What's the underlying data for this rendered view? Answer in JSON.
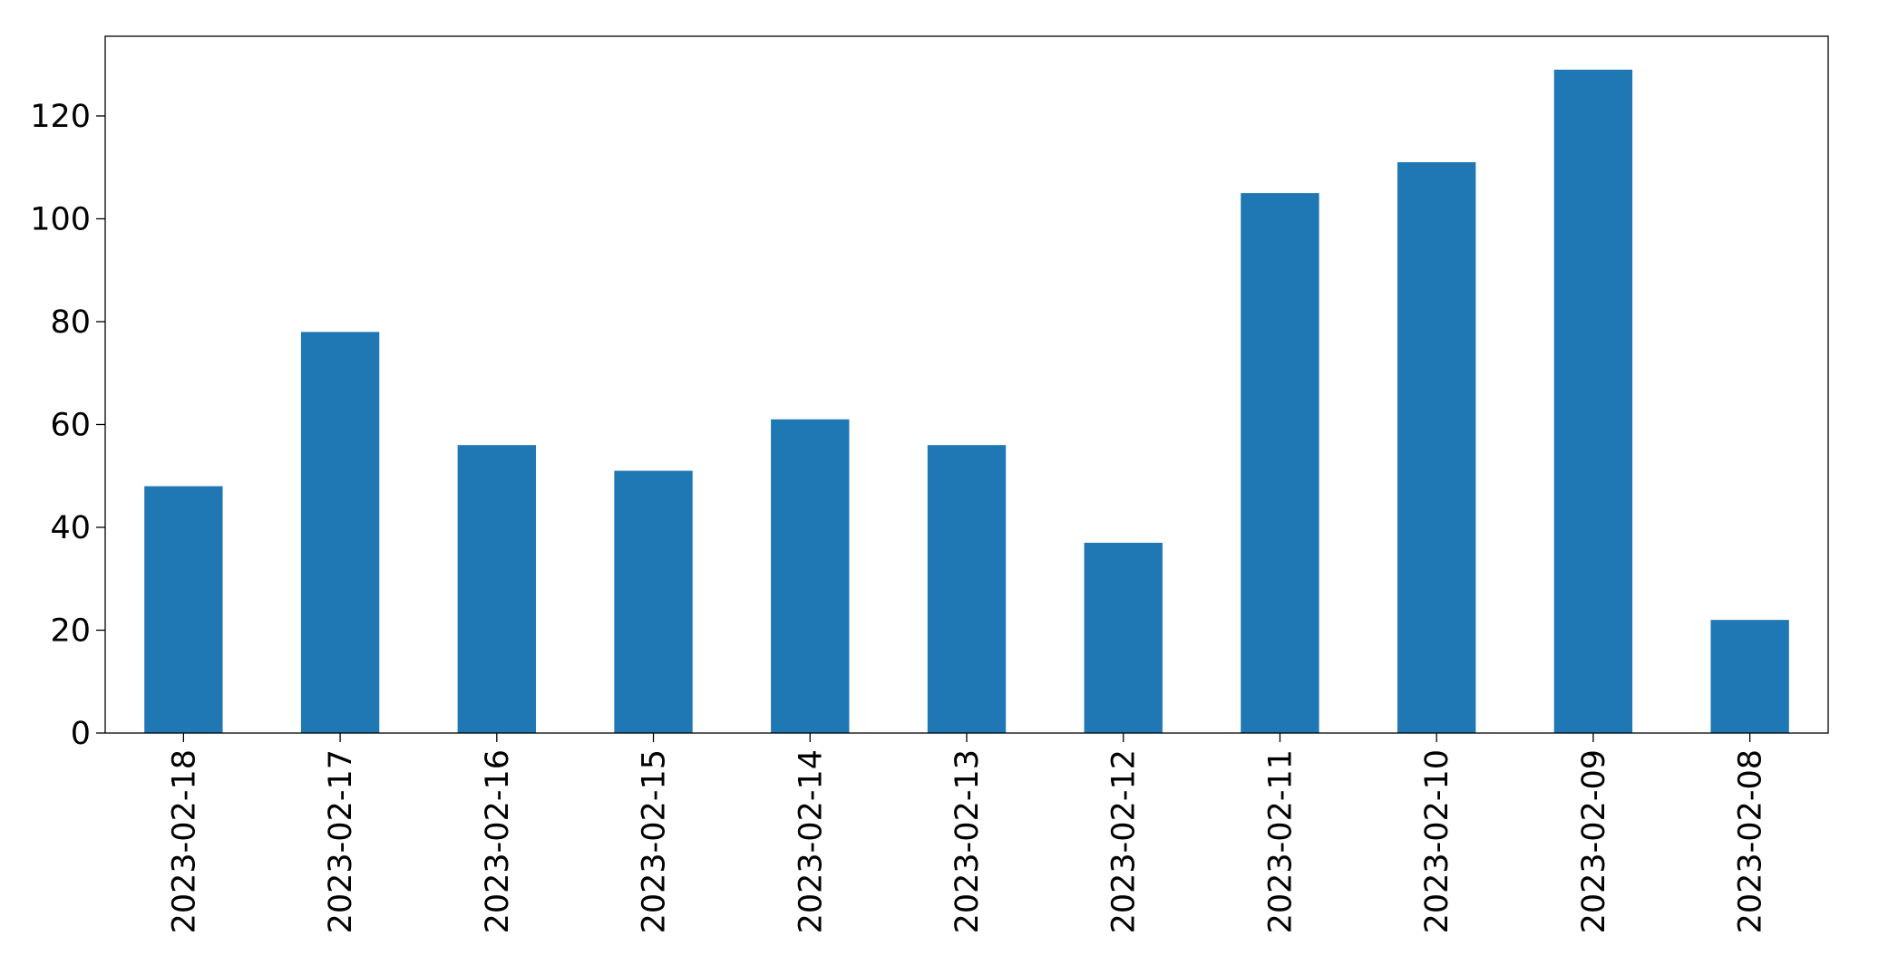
{
  "chart_data": {
    "type": "bar",
    "categories": [
      "2023-02-18",
      "2023-02-17",
      "2023-02-16",
      "2023-02-15",
      "2023-02-14",
      "2023-02-13",
      "2023-02-12",
      "2023-02-11",
      "2023-02-10",
      "2023-02-09",
      "2023-02-08"
    ],
    "values": [
      48,
      78,
      56,
      51,
      61,
      56,
      37,
      105,
      111,
      129,
      22
    ],
    "color": "#1f77b4",
    "ylim": [
      0,
      135.5
    ],
    "yticks": [
      0,
      20,
      40,
      60,
      80,
      100,
      120
    ],
    "grid": false
  }
}
